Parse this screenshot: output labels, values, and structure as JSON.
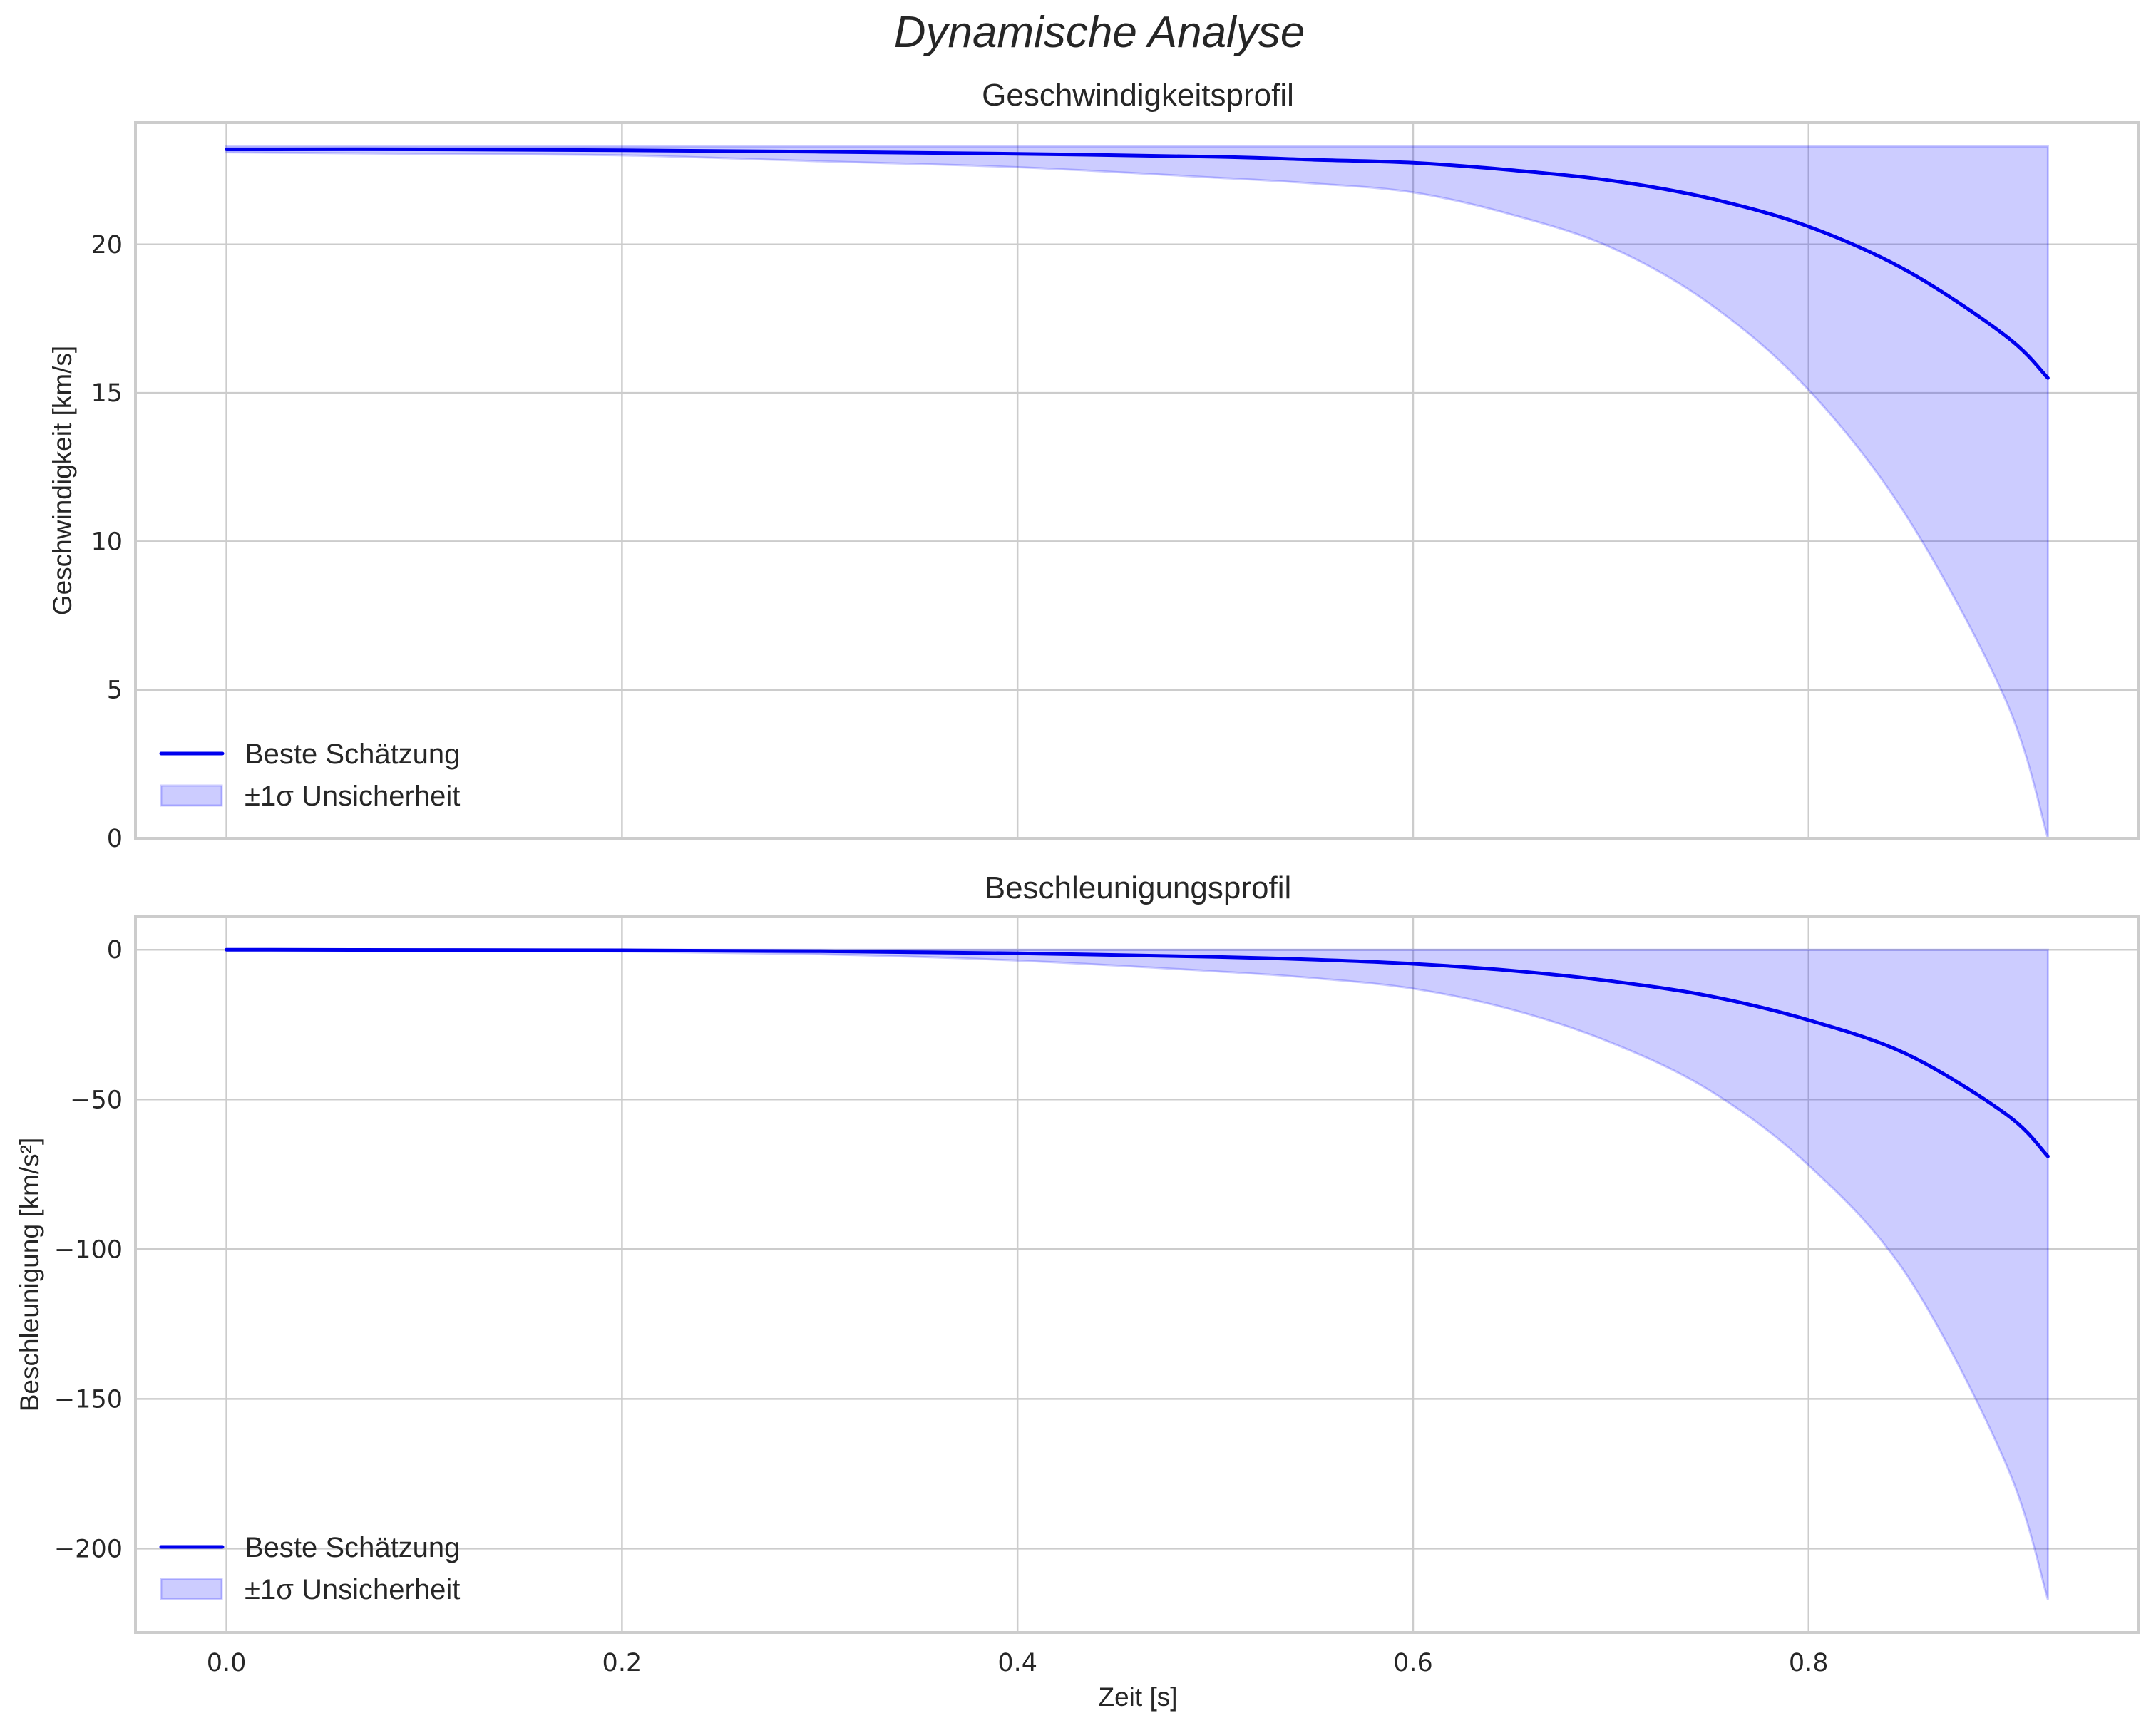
{
  "figure": {
    "suptitle": "Dynamische Analyse",
    "colors": {
      "line": "#0000ee",
      "band_fill": "#0000ff",
      "band_alpha": 0.2,
      "grid": "#cccccc",
      "frame": "#cccccc",
      "text": "#262626"
    }
  },
  "chart_data": [
    {
      "type": "line",
      "title": "Geschwindigkeitsprofil",
      "xlabel": "",
      "ylabel": "Geschwindigkeit [km/s]",
      "xlim": [
        -0.046,
        0.967
      ],
      "ylim": [
        0,
        24.1
      ],
      "xticks": [
        "0.0",
        "0.2",
        "0.4",
        "0.6",
        "0.8"
      ],
      "yticks": [
        "0",
        "5",
        "10",
        "15",
        "20"
      ],
      "ytick_values": [
        0,
        5,
        10,
        15,
        20
      ],
      "grid": true,
      "legend": {
        "position": "lower left",
        "entries": [
          "Beste Schätzung",
          "±1σ Unsicherheit"
        ]
      },
      "x": [
        0.0,
        0.1,
        0.2,
        0.3,
        0.4,
        0.5,
        0.55,
        0.6,
        0.65,
        0.7,
        0.75,
        0.8,
        0.85,
        0.9,
        0.921
      ],
      "series": [
        {
          "name": "Beste Schätzung",
          "values": [
            23.2,
            23.2,
            23.17,
            23.12,
            23.05,
            22.95,
            22.85,
            22.75,
            22.5,
            22.15,
            21.55,
            20.6,
            19.1,
            16.9,
            15.5
          ]
        },
        {
          "name": "±1σ Unsicherheit (oben)",
          "values": [
            23.3,
            23.3,
            23.3,
            23.3,
            23.3,
            23.3,
            23.3,
            23.3,
            23.3,
            23.3,
            23.3,
            23.3,
            23.3,
            23.3,
            23.3
          ]
        },
        {
          "name": "±1σ Unsicherheit (unten)",
          "values": [
            23.1,
            23.05,
            23.0,
            22.8,
            22.6,
            22.25,
            22.05,
            21.75,
            21.0,
            19.9,
            18.0,
            15.1,
            10.8,
            4.6,
            0.0
          ]
        }
      ]
    },
    {
      "type": "line",
      "title": "Beschleunigungsprofil",
      "xlabel": "Zeit [s]",
      "ylabel": "Beschleunigung [km/s²]",
      "xlim": [
        -0.046,
        0.967
      ],
      "ylim": [
        -228,
        11
      ],
      "xticks": [
        "0.0",
        "0.2",
        "0.4",
        "0.6",
        "0.8"
      ],
      "yticks": [
        "0",
        "−50",
        "−100",
        "−150",
        "−200"
      ],
      "ytick_values": [
        0,
        -50,
        -100,
        -150,
        -200
      ],
      "grid": true,
      "legend": {
        "position": "lower left",
        "entries": [
          "Beste Schätzung",
          "±1σ Unsicherheit"
        ]
      },
      "x": [
        0.0,
        0.1,
        0.2,
        0.3,
        0.4,
        0.5,
        0.55,
        0.6,
        0.65,
        0.7,
        0.75,
        0.8,
        0.85,
        0.9,
        0.921
      ],
      "series": [
        {
          "name": "Beste Schätzung",
          "values": [
            0.0,
            -0.1,
            -0.2,
            -0.5,
            -1.2,
            -2.4,
            -3.3,
            -4.7,
            -7.0,
            -10.5,
            -15.5,
            -23.5,
            -35.0,
            -55.0,
            -69.0
          ]
        },
        {
          "name": "±1σ Unsicherheit (oben)",
          "values": [
            0,
            0,
            0,
            0,
            0,
            0,
            0,
            0,
            0,
            0,
            0,
            0,
            0,
            0,
            0
          ]
        },
        {
          "name": "±1σ Unsicherheit (unten)",
          "values": [
            0.0,
            -0.2,
            -0.6,
            -1.5,
            -3.6,
            -7.2,
            -9.5,
            -13.0,
            -20.0,
            -31.0,
            -47.0,
            -72.0,
            -109.0,
            -172.0,
            -217.0
          ]
        }
      ]
    }
  ]
}
